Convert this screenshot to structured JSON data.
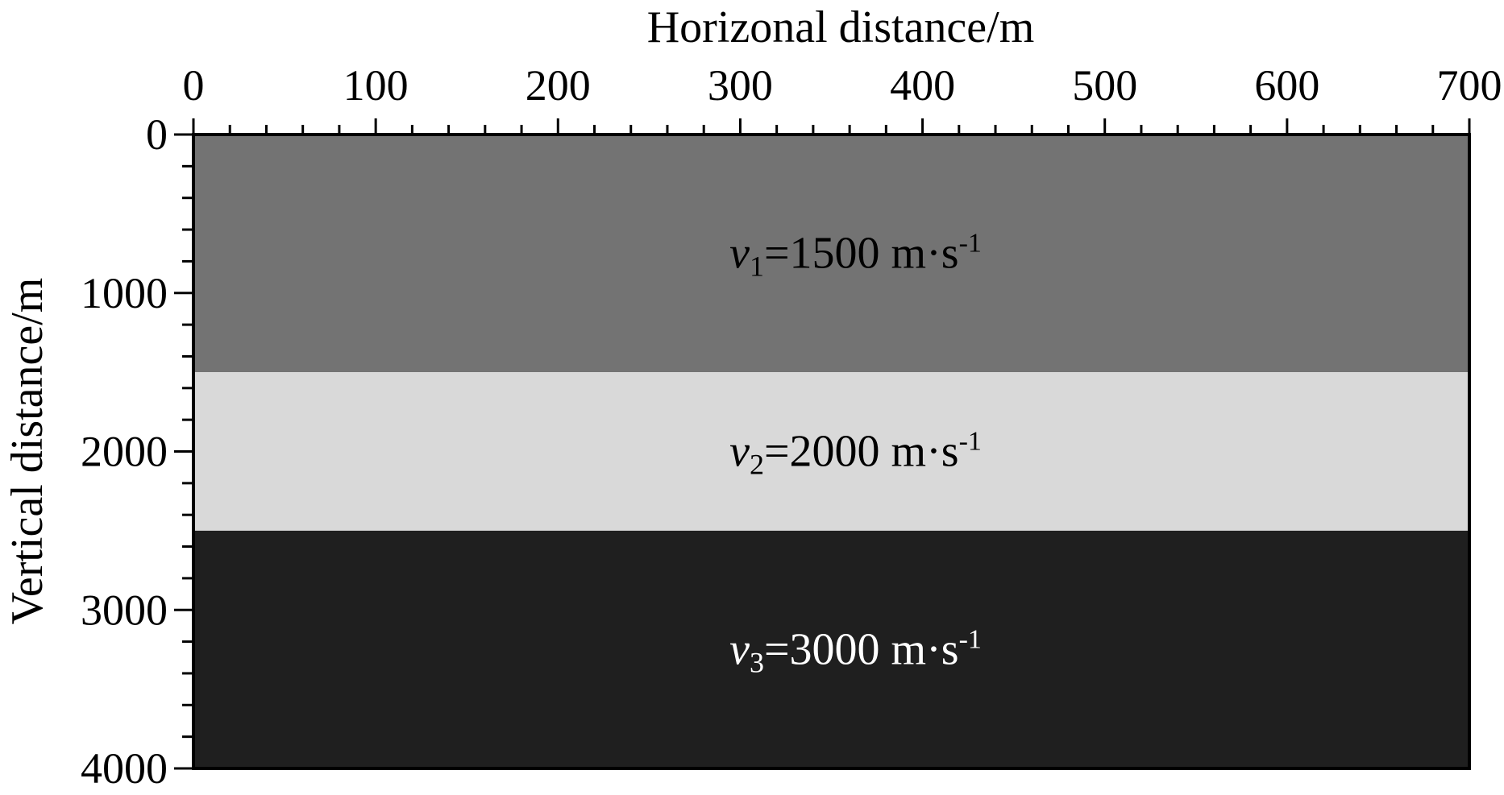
{
  "chart_data": {
    "type": "velocity-model",
    "xlabel": "Horizonal distance/m",
    "ylabel": "Vertical distance/m",
    "xlim": [
      0,
      700
    ],
    "ylim": [
      0,
      4000
    ],
    "y_inverted": true,
    "x_axis_position": "top",
    "x_ticks": [
      "0",
      "100",
      "200",
      "300",
      "400",
      "500",
      "600",
      "700"
    ],
    "y_ticks": [
      "0",
      "1000",
      "2000",
      "3000",
      "4000"
    ],
    "layers": [
      {
        "top": 0,
        "bottom": 1500,
        "color": "#737373",
        "text_color": "#000000",
        "var": "v",
        "sub": "1",
        "label": "=1500 m·s",
        "sup": "-1"
      },
      {
        "top": 1500,
        "bottom": 2500,
        "color": "#d9d9d9",
        "text_color": "#000000",
        "var": "v",
        "sub": "2",
        "label": "=2000 m·s",
        "sup": "-1"
      },
      {
        "top": 2500,
        "bottom": 4000,
        "color": "#1f1f1f",
        "text_color": "#ffffff",
        "var": "v",
        "sub": "3",
        "label": "=3000 m·s",
        "sup": "-1"
      }
    ]
  }
}
